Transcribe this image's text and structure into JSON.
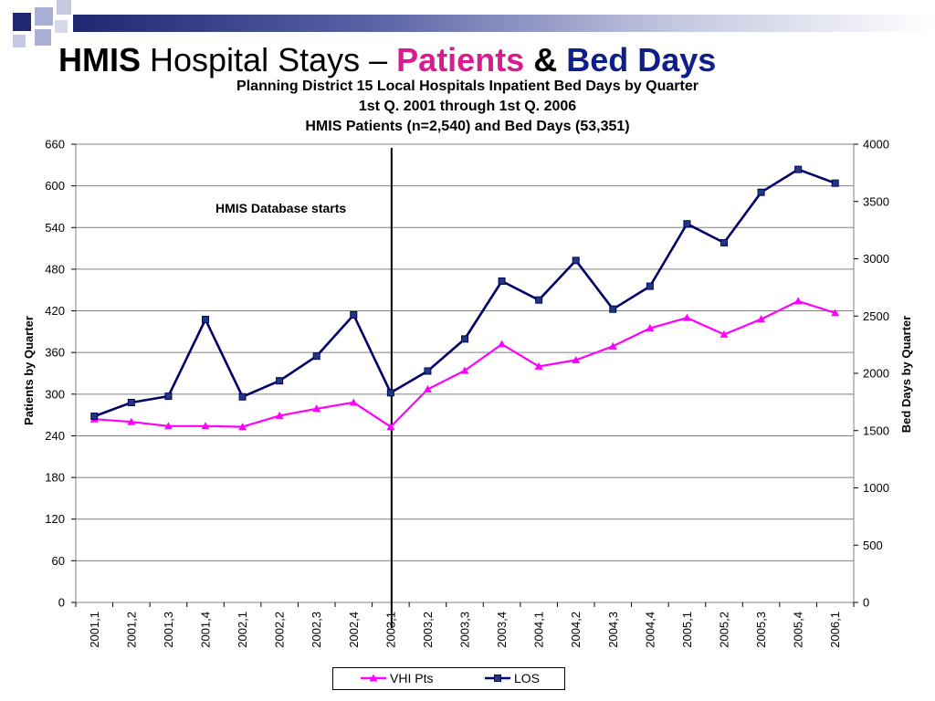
{
  "slide": {
    "title_parts": {
      "hmis": "HMIS",
      "hospital_stays": "Hospital Stays –",
      "patients": "Patients",
      "amp": "&",
      "bed_days": "Bed Days"
    },
    "colors": {
      "title_patients": "#d81b8f",
      "title_bed_days": "#0f1f8a",
      "deco_dark": "#1e2770",
      "deco_light": "#a9aed6"
    }
  },
  "chart_data": {
    "type": "line",
    "title_lines": [
      "Planning District 15 Local Hospitals Inpatient Bed Days by Quarter",
      "1st Q. 2001 through 1st Q. 2006",
      "HMIS Patients (n=2,540) and Bed Days (53,351)"
    ],
    "categories": [
      "2001,1",
      "2001,2",
      "2001,3",
      "2001,4",
      "2002,1",
      "2002,2",
      "2002,3",
      "2002,4",
      "2003,1",
      "2003,2",
      "2003,3",
      "2003,4",
      "2004,1",
      "2004,2",
      "2004,3",
      "2004,4",
      "2005,1",
      "2005,2",
      "2005,3",
      "2005,4",
      "2006,1"
    ],
    "series": [
      {
        "name": "VHI Pts",
        "axis": "left",
        "color": "#ff00ff",
        "marker": "triangle",
        "values": [
          264,
          260,
          254,
          254,
          253,
          269,
          279,
          288,
          253,
          307,
          334,
          372,
          340,
          349,
          369,
          395,
          410,
          386,
          408,
          434,
          417
        ]
      },
      {
        "name": "LOS",
        "axis": "right",
        "color": "#000066",
        "marker": "square",
        "values": [
          1625,
          1745,
          1800,
          2470,
          1795,
          1935,
          2150,
          2510,
          1830,
          2020,
          2300,
          2805,
          2640,
          2985,
          2560,
          2760,
          3305,
          3140,
          3580,
          3780,
          3660
        ]
      }
    ],
    "ylabel_left": "Patients by Quarter",
    "ylabel_right": "Bed Days by Quarter",
    "ylim_left": [
      0,
      660
    ],
    "yticks_left": [
      0,
      60,
      120,
      180,
      240,
      300,
      360,
      420,
      480,
      540,
      600,
      660
    ],
    "ylim_right": [
      0,
      4000
    ],
    "yticks_right": [
      0,
      500,
      1000,
      1500,
      2000,
      2500,
      3000,
      3500,
      4000
    ],
    "grid": true,
    "legend_position": "bottom",
    "annotation": {
      "text": "HMIS Database starts",
      "category": "2003,1"
    }
  }
}
